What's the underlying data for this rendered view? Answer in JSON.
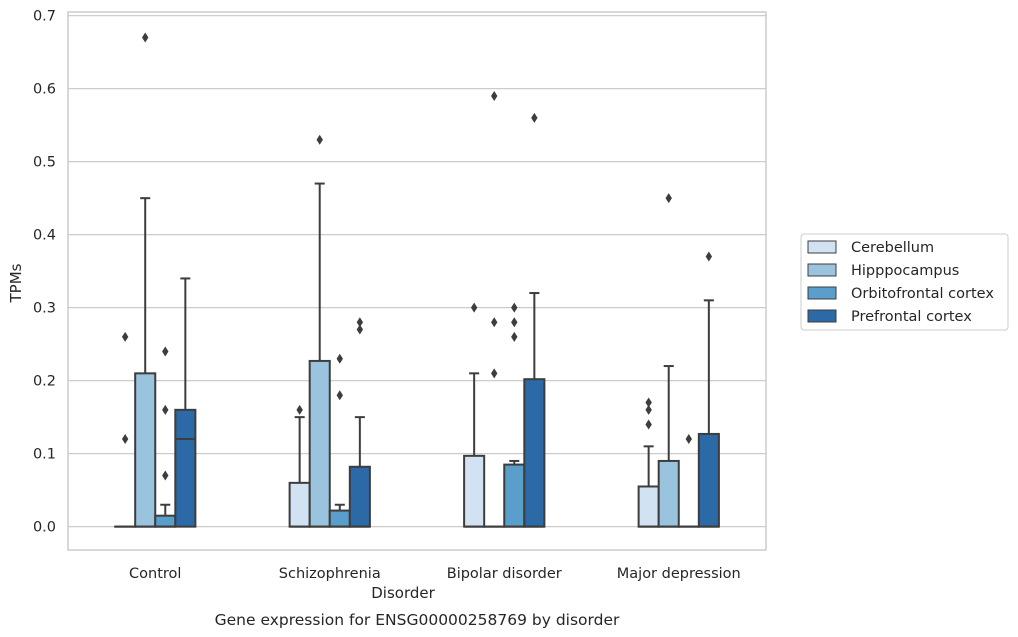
{
  "chart_data": {
    "type": "box",
    "caption": "Gene expression for ENSG00000258769 by disorder",
    "xlabel": "Disorder",
    "ylabel": "TPMs",
    "ylim": [
      -0.032,
      0.705
    ],
    "yticks": [
      "0.0",
      "0.1",
      "0.2",
      "0.3",
      "0.4",
      "0.5",
      "0.6",
      "0.7"
    ],
    "ytick_values": [
      0,
      0.1,
      0.2,
      0.3,
      0.4,
      0.5,
      0.6,
      0.7
    ],
    "grid": true,
    "legend_position": "right",
    "categories": [
      "Control",
      "Schizophrenia",
      "Bipolar disorder",
      "Major depression"
    ],
    "series": [
      {
        "name": "Cerebellum",
        "color": "#d1e2f2",
        "boxes": [
          {
            "q1": 0,
            "median": 0,
            "q3": 0,
            "whisker_low": 0,
            "whisker_high": 0,
            "outliers": [
              0.12,
              0.26
            ]
          },
          {
            "q1": 0,
            "median": 0,
            "q3": 0.06,
            "whisker_low": 0,
            "whisker_high": 0.15,
            "outliers": [
              0.16
            ]
          },
          {
            "q1": 0,
            "median": 0,
            "q3": 0.097,
            "whisker_low": 0,
            "whisker_high": 0.21,
            "outliers": [
              0.3
            ]
          },
          {
            "q1": 0,
            "median": 0,
            "q3": 0.055,
            "whisker_low": 0,
            "whisker_high": 0.11,
            "outliers": [
              0.14,
              0.16,
              0.17
            ]
          }
        ]
      },
      {
        "name": "Hipppocampus",
        "color": "#9ac4de",
        "boxes": [
          {
            "q1": 0,
            "median": 0,
            "q3": 0.21,
            "whisker_low": 0,
            "whisker_high": 0.45,
            "outliers": [
              0.67
            ]
          },
          {
            "q1": 0,
            "median": 0,
            "q3": 0.227,
            "whisker_low": 0,
            "whisker_high": 0.47,
            "outliers": [
              0.53
            ]
          },
          {
            "q1": 0,
            "median": 0,
            "q3": 0,
            "whisker_low": 0,
            "whisker_high": 0,
            "outliers": [
              0.21,
              0.28,
              0.59
            ]
          },
          {
            "q1": 0,
            "median": 0,
            "q3": 0.09,
            "whisker_low": 0,
            "whisker_high": 0.22,
            "outliers": [
              0.45
            ]
          }
        ]
      },
      {
        "name": "Orbitofrontal cortex",
        "color": "#5a9ecb",
        "boxes": [
          {
            "q1": 0,
            "median": 0,
            "q3": 0.015,
            "whisker_low": 0,
            "whisker_high": 0.03,
            "outliers": [
              0.07,
              0.16,
              0.24
            ]
          },
          {
            "q1": 0,
            "median": 0,
            "q3": 0.022,
            "whisker_low": 0,
            "whisker_high": 0.03,
            "outliers": [
              0.18,
              0.23
            ]
          },
          {
            "q1": 0,
            "median": 0,
            "q3": 0.085,
            "whisker_low": 0,
            "whisker_high": 0.09,
            "outliers": [
              0.26,
              0.28,
              0.3
            ]
          },
          {
            "q1": 0,
            "median": 0,
            "q3": 0,
            "whisker_low": 0,
            "whisker_high": 0,
            "outliers": [
              0.12
            ]
          }
        ]
      },
      {
        "name": "Prefrontal cortex",
        "color": "#2b6aa7",
        "boxes": [
          {
            "q1": 0,
            "median": 0.12,
            "q3": 0.16,
            "whisker_low": 0,
            "whisker_high": 0.34,
            "outliers": []
          },
          {
            "q1": 0,
            "median": 0,
            "q3": 0.082,
            "whisker_low": 0,
            "whisker_high": 0.15,
            "outliers": [
              0.27,
              0.28
            ]
          },
          {
            "q1": 0,
            "median": 0,
            "q3": 0.202,
            "whisker_low": 0,
            "whisker_high": 0.32,
            "outliers": [
              0.56
            ]
          },
          {
            "q1": 0,
            "median": 0,
            "q3": 0.127,
            "whisker_low": 0,
            "whisker_high": 0.31,
            "outliers": [
              0.37
            ]
          }
        ]
      }
    ]
  }
}
